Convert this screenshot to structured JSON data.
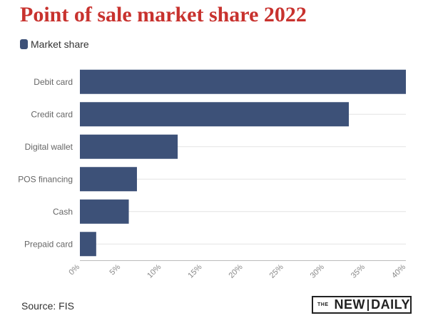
{
  "title": "Point of sale market share 2022",
  "legend": {
    "label": "Market share",
    "color": "#3d5178"
  },
  "source": "Source: FIS",
  "logo": {
    "the": "THE",
    "part1": "NEW",
    "part2": "DAILY"
  },
  "colors": {
    "title": "#c8322e",
    "bar": "#3d5178",
    "grid": "#e3e3e3"
  },
  "chart_data": {
    "type": "bar",
    "orientation": "horizontal",
    "title": "Point of sale market share 2022",
    "categories": [
      "Debit card",
      "Credit card",
      "Digital wallet",
      "POS financing",
      "Cash",
      "Prepaid card"
    ],
    "series": [
      {
        "name": "Market share",
        "values": [
          40,
          33,
          12,
          7,
          6,
          2
        ]
      }
    ],
    "xlim": [
      0,
      40
    ],
    "xticks": [
      0,
      5,
      10,
      15,
      20,
      25,
      30,
      35,
      40
    ],
    "xtick_labels": [
      "0%",
      "5%",
      "10%",
      "15%",
      "20%",
      "25%",
      "30%",
      "35%",
      "40%"
    ],
    "xlabel": "",
    "ylabel": "",
    "legend_position": "top-left",
    "grid": true
  }
}
